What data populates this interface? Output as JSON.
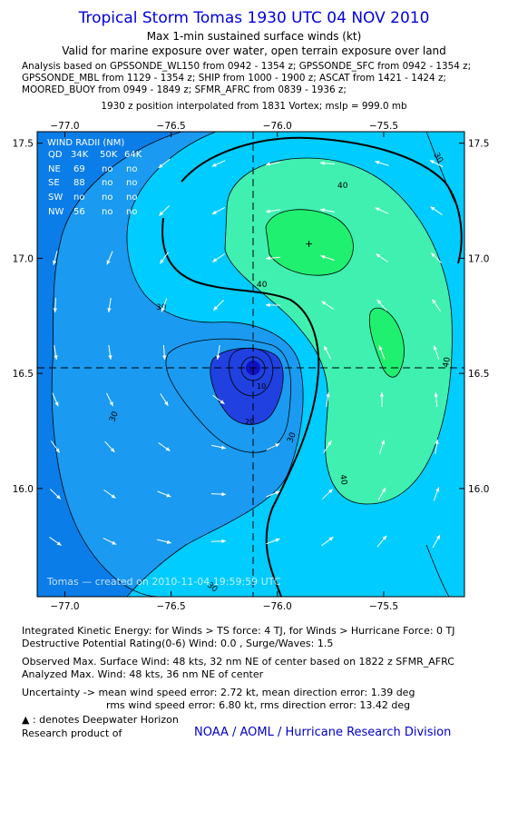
{
  "header": {
    "title": "Tropical Storm Tomas 1930 UTC 04 NOV 2010",
    "subtitle1": "Max 1-min sustained surface winds (kt)",
    "subtitle2": "Valid for marine exposure over water, open terrain exposure over land",
    "analysis_line1": "Analysis based on GPSSONDE_WL150 from 0942 - 1354 z; GPSSONDE_SFC from 0942 - 1354 z;",
    "analysis_line2": "GPSSONDE_MBL from 1129 - 1354 z; SHIP from 1000 - 1900 z; ASCAT from 1421 - 1424 z;",
    "analysis_line3": "MOORED_BUOY from 0949 - 1849 z; SFMR_AFRC from 0839 - 1936 z;",
    "position_line": "1930 z position interpolated from 1831 Vortex; mslp = 999.0 mb"
  },
  "map": {
    "x_ticks": [
      {
        "value": -77.0,
        "label": "−77.0"
      },
      {
        "value": -76.5,
        "label": "−76.5"
      },
      {
        "value": -76.0,
        "label": "−76.0"
      },
      {
        "value": -75.5,
        "label": "−75.5"
      }
    ],
    "y_ticks": [
      {
        "value": 17.5,
        "label": "17.5"
      },
      {
        "value": 17.0,
        "label": "17.0"
      },
      {
        "value": 16.5,
        "label": "16.5"
      },
      {
        "value": 16.0,
        "label": "16.0"
      }
    ],
    "lon_range": [
      -77.13,
      -75.12
    ],
    "lat_range": [
      15.53,
      17.55
    ],
    "center": {
      "lon": -76.1,
      "lat": 16.52
    },
    "max_wind_marker": {
      "lon": -75.84,
      "lat": 17.07
    },
    "contour_labels": [
      "30",
      "40",
      "40",
      "30",
      "10",
      "20",
      "30",
      "40",
      "40",
      "30",
      "30"
    ],
    "colors": {
      "background_outer": "#0a7de8",
      "band_20_30": "#1a9af0",
      "band_30_40": "#00ccff",
      "band_40_plus": "#3ff0b0",
      "band_44_plus": "#20f070",
      "core": "#2040e0"
    },
    "wind_radii": {
      "title": "WIND RADII (NM)",
      "header": [
        "QD",
        "34K",
        "50K",
        "64K"
      ],
      "rows": [
        [
          "NE",
          "69",
          "no",
          "no"
        ],
        [
          "SE",
          "88",
          "no",
          "no"
        ],
        [
          "SW",
          "no",
          "no",
          "no"
        ],
        [
          "NW",
          "56",
          "no",
          "no"
        ]
      ]
    },
    "footer_stamp": "Tomas — created on 2010-11-04 19:59:59 UTC"
  },
  "bottom": {
    "ike": "Integrated Kinetic Energy:  for Winds > TS force: 4 TJ,  for Winds > Hurricane Force: 0 TJ",
    "dpr": "Destructive Potential Rating(0-6)   Wind: 0.0 , Surge/Waves: 1.5",
    "observed": "Observed Max. Surface Wind: 48 kts, 32 nm NE of center based on 1822 z SFMR_AFRC",
    "analyzed": "Analyzed Max. Wind: 48 kts, 36 nm NE of center",
    "uncertainty1": "Uncertainty -> mean wind speed error: 2.72 kt,   mean direction error: 1.39 deg",
    "uncertainty2": "rms wind speed error: 6.80 kt,   rms direction error: 13.42 deg",
    "deepwater": "▲ : denotes Deepwater Horizon",
    "research": "Research product of",
    "noaa": "NOAA / AOML / Hurricane Research Division"
  }
}
